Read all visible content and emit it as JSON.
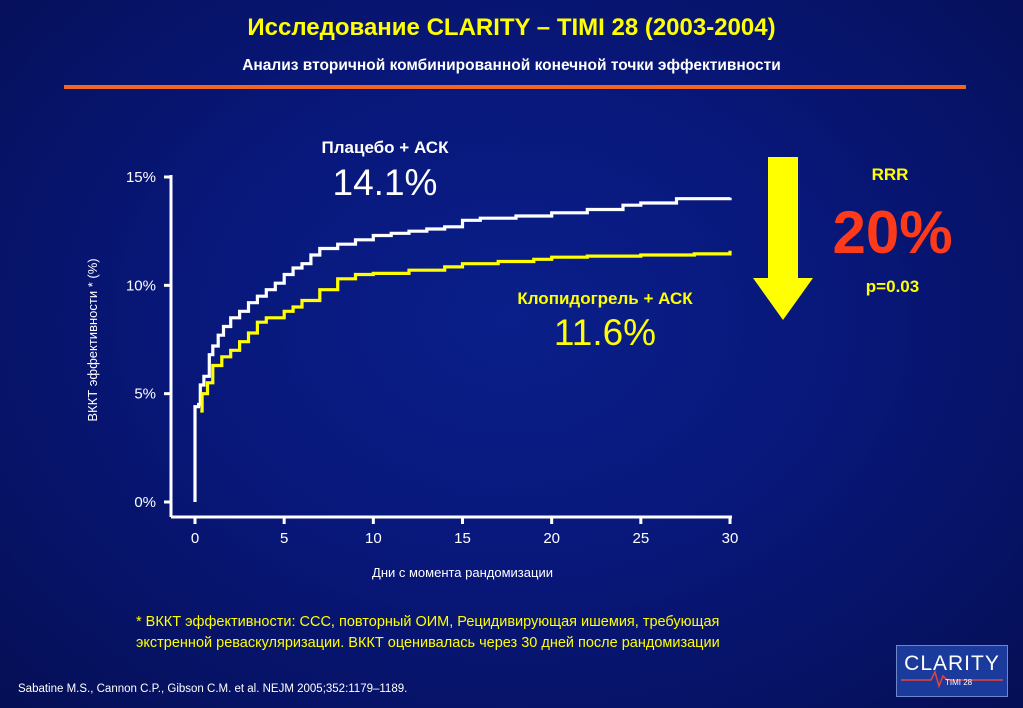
{
  "header": {
    "title": "Исследование CLARITY – TIMI 28 (2003-2004)",
    "subtitle": "Анализ вторичной комбинированной конечной точки эффективности"
  },
  "annotations": {
    "placebo_label": "Плацебо + АСК",
    "placebo_value": "14.1%",
    "clopidogrel_label": "Клопидогрель + АСК",
    "clopidogrel_value": "11.6%",
    "rrr_label": "RRR",
    "rrr_value": "20%",
    "p_value": "p=0.03"
  },
  "footnote": {
    "line1": "* ВККТ эффективности: ССС, повторный ОИМ, Рецидивирующая ишемия, требующая",
    "line2": "экстренной реваскуляризации. ВККТ оценивалась через 30 дней после рандомизации"
  },
  "citation": "Sabatine M.S., Cannon C.P., Gibson C.M. et al. NEJM 2005;352:1179–1189.",
  "logo": {
    "main": "CLARITY",
    "sub": "TIMI 28"
  },
  "colors": {
    "background": "#08177a",
    "accent_yellow": "#ffff00",
    "rule_orange": "#f26522",
    "rrr_red": "#ff3a1a",
    "placebo_line": "#ffffff",
    "clopidogrel_line": "#ffff00"
  },
  "arrow": {
    "direction": "down",
    "color": "#ffff00"
  },
  "chart_data": {
    "type": "line",
    "title": "",
    "xlabel": "Дни с момента рандомизации",
    "ylabel": "ВККТ эффективности * (%)",
    "xlim": [
      0,
      30
    ],
    "ylim": [
      0,
      15
    ],
    "x_ticks": [
      0,
      5,
      10,
      15,
      20,
      25,
      30
    ],
    "x_tick_labels": [
      "0",
      "5",
      "10",
      "15",
      "20",
      "25",
      "30"
    ],
    "y_ticks": [
      0,
      5,
      10,
      15
    ],
    "y_tick_labels": [
      "0%",
      "5%",
      "10%",
      "15%"
    ],
    "grid": false,
    "series": [
      {
        "name": "Плацебо + АСК",
        "color": "#ffffff",
        "points": [
          [
            0,
            0
          ],
          [
            0,
            4.4
          ],
          [
            0.2,
            4.5
          ],
          [
            0.3,
            5.4
          ],
          [
            0.5,
            5.8
          ],
          [
            0.8,
            6.8
          ],
          [
            1.0,
            7.2
          ],
          [
            1.3,
            7.7
          ],
          [
            1.6,
            8.1
          ],
          [
            2.0,
            8.5
          ],
          [
            2.5,
            8.8
          ],
          [
            3.0,
            9.2
          ],
          [
            3.5,
            9.5
          ],
          [
            4.0,
            9.8
          ],
          [
            4.5,
            10.1
          ],
          [
            5.0,
            10.5
          ],
          [
            5.5,
            10.8
          ],
          [
            6.0,
            11.0
          ],
          [
            6.5,
            11.4
          ],
          [
            7.0,
            11.7
          ],
          [
            8.0,
            11.9
          ],
          [
            9.0,
            12.1
          ],
          [
            10.0,
            12.3
          ],
          [
            11.0,
            12.4
          ],
          [
            12.0,
            12.5
          ],
          [
            13.0,
            12.6
          ],
          [
            14.0,
            12.7
          ],
          [
            15.0,
            13.0
          ],
          [
            16.0,
            13.1
          ],
          [
            18.0,
            13.2
          ],
          [
            20.0,
            13.35
          ],
          [
            22.0,
            13.5
          ],
          [
            24.0,
            13.7
          ],
          [
            25.0,
            13.8
          ],
          [
            27.0,
            14.0
          ],
          [
            30.0,
            14.05
          ]
        ]
      },
      {
        "name": "Клопидогрель + АСК",
        "color": "#ffff00",
        "points": [
          [
            0.3,
            4.2
          ],
          [
            0.4,
            5.0
          ],
          [
            0.7,
            5.5
          ],
          [
            1.0,
            6.3
          ],
          [
            1.5,
            6.7
          ],
          [
            2.0,
            7.0
          ],
          [
            2.5,
            7.4
          ],
          [
            3.0,
            7.8
          ],
          [
            3.5,
            8.3
          ],
          [
            4.0,
            8.5
          ],
          [
            5.0,
            8.8
          ],
          [
            5.5,
            9.0
          ],
          [
            6.0,
            9.3
          ],
          [
            7.0,
            9.8
          ],
          [
            8.0,
            10.3
          ],
          [
            9.0,
            10.5
          ],
          [
            10.0,
            10.55
          ],
          [
            12.0,
            10.7
          ],
          [
            14.0,
            10.85
          ],
          [
            15.0,
            11.0
          ],
          [
            17.0,
            11.1
          ],
          [
            19.0,
            11.2
          ],
          [
            20.0,
            11.3
          ],
          [
            22.0,
            11.35
          ],
          [
            25.0,
            11.4
          ],
          [
            28.0,
            11.45
          ],
          [
            30.0,
            11.6
          ]
        ]
      }
    ]
  }
}
